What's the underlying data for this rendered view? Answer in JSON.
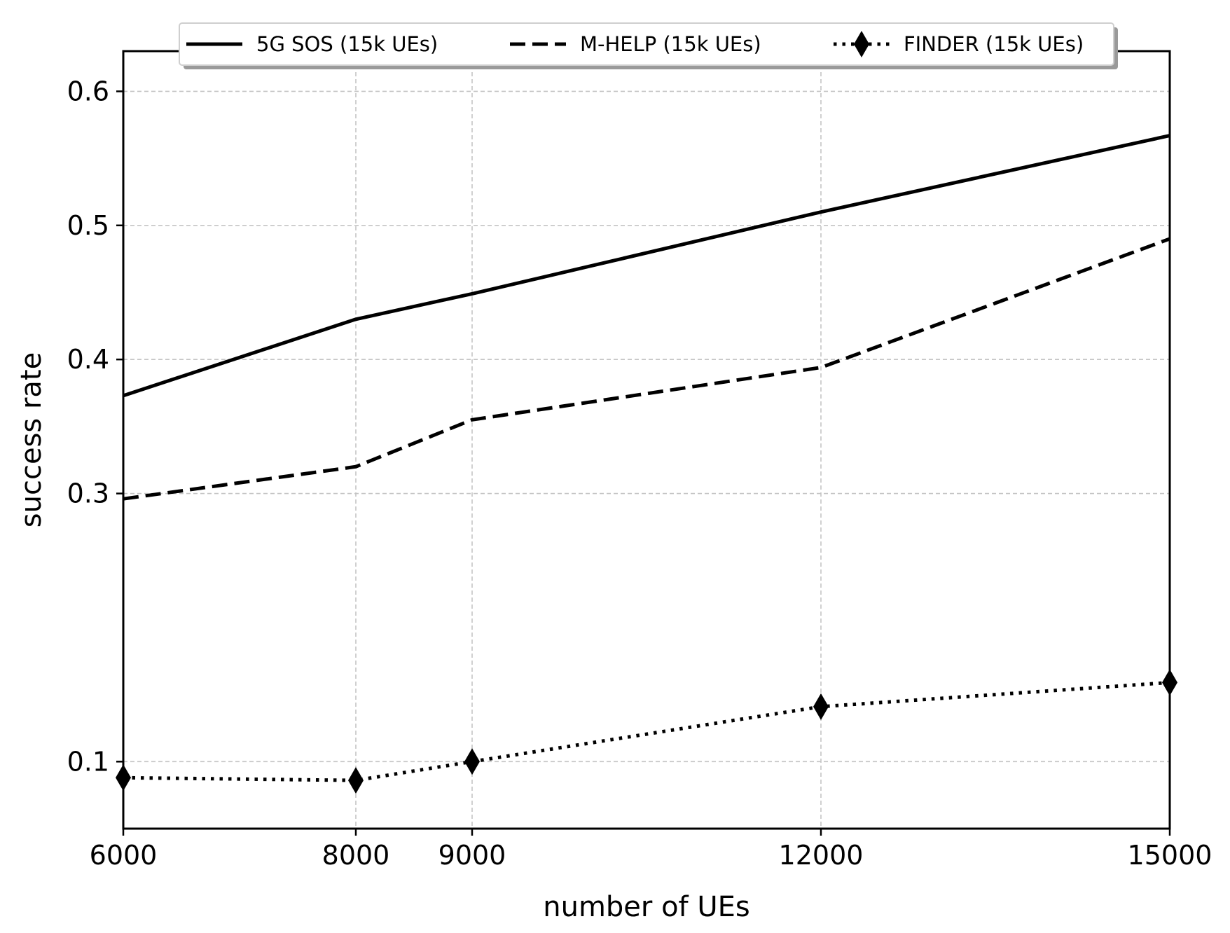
{
  "chart_data": {
    "type": "line",
    "title": "",
    "xlabel": "number of UEs",
    "ylabel": "success rate",
    "x": [
      6000,
      8000,
      9000,
      12000,
      15000
    ],
    "xticks": [
      6000,
      8000,
      9000,
      12000,
      15000
    ],
    "xtick_labels": [
      "6000",
      "8000",
      "9000",
      "12000",
      "15000"
    ],
    "yticks": [
      0.1,
      0.3,
      0.4,
      0.5,
      0.6
    ],
    "ytick_labels": [
      "0.1",
      "0.3",
      "0.4",
      "0.5",
      "0.6"
    ],
    "xlim": [
      6000,
      15000
    ],
    "ylim": [
      0.05,
      0.63
    ],
    "grid": true,
    "legend_position": "top",
    "series": [
      {
        "name": "5G SOS (15k UEs)",
        "style": "solid",
        "marker": "none",
        "color": "#000000",
        "values": [
          0.373,
          0.43,
          0.449,
          0.51,
          0.567
        ]
      },
      {
        "name": "M-HELP (15k UEs)",
        "style": "dashed",
        "marker": "none",
        "color": "#000000",
        "values": [
          0.296,
          0.32,
          0.355,
          0.394,
          0.49
        ]
      },
      {
        "name": "FINDER (15k UEs)",
        "style": "dotted",
        "marker": "diamond",
        "color": "#000000",
        "values": [
          0.088,
          0.086,
          0.1,
          0.141,
          0.159
        ]
      }
    ]
  }
}
